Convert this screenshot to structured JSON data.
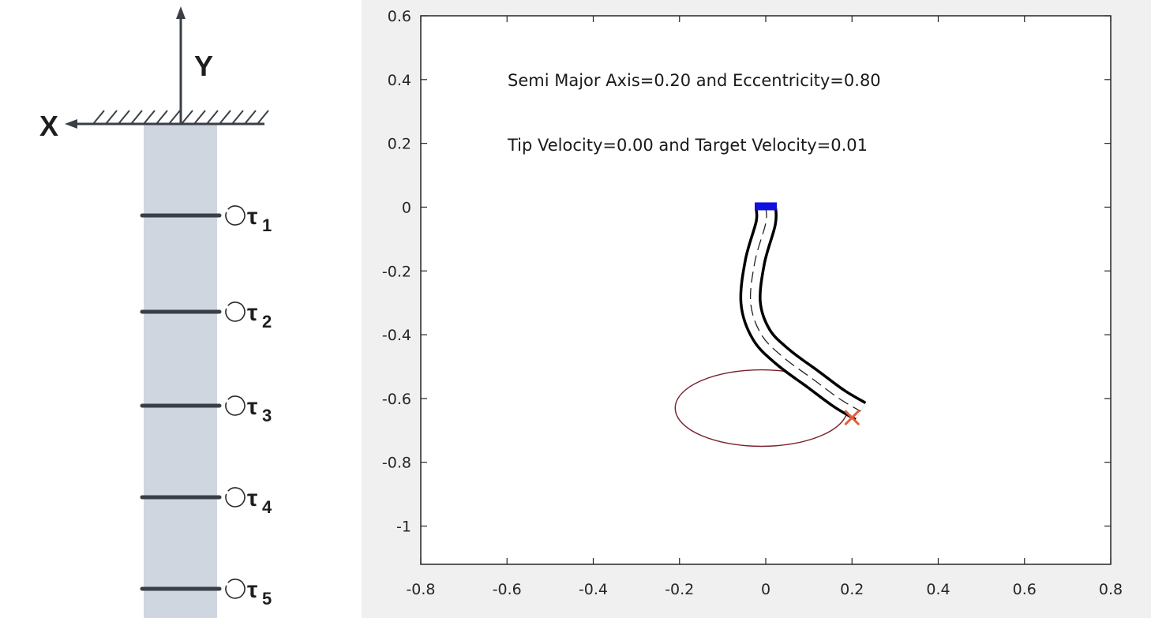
{
  "left_diagram": {
    "x_axis_label": "X",
    "y_axis_label": "Y",
    "torque_symbol": "τ",
    "joints": [
      {
        "subscript": "1"
      },
      {
        "subscript": "2"
      },
      {
        "subscript": "3"
      },
      {
        "subscript": "4"
      },
      {
        "subscript": "5"
      }
    ],
    "colors": {
      "beam": "#cfd6e0",
      "lines": "#3a3f47"
    }
  },
  "plot": {
    "annotation_line1": "Semi Major Axis=0.20 and Eccentricity=0.80",
    "annotation_line2": "Tip Velocity=0.00 and Target Velocity=0.01",
    "colors": {
      "ellipse": "#7a1f2b",
      "target_marker": "#e0603a",
      "base": "#1010e0",
      "arm": "#000000"
    }
  },
  "chart_data": {
    "type": "line",
    "xlim": [
      -0.8,
      0.8
    ],
    "ylim": [
      -1.12,
      0.6
    ],
    "xticks": [
      "-0.8",
      "-0.6",
      "-0.4",
      "-0.2",
      "0",
      "0.2",
      "0.4",
      "0.6",
      "0.8"
    ],
    "yticks": [
      "0.6",
      "0.4",
      "0.2",
      "0",
      "-0.2",
      "-0.4",
      "-0.6",
      "-0.8",
      "-1"
    ],
    "grid": false,
    "ellipse": {
      "center": [
        -0.01,
        -0.63
      ],
      "semi_major": 0.2,
      "semi_minor": 0.12
    },
    "target": [
      0.2,
      -0.66
    ],
    "arm_centerline": [
      [
        0,
        0
      ],
      [
        0,
        -0.05
      ],
      [
        -0.025,
        -0.17
      ],
      [
        -0.035,
        -0.3
      ],
      [
        -0.01,
        -0.4
      ],
      [
        0.04,
        -0.47
      ],
      [
        0.11,
        -0.54
      ],
      [
        0.17,
        -0.6
      ],
      [
        0.22,
        -0.64
      ]
    ]
  }
}
